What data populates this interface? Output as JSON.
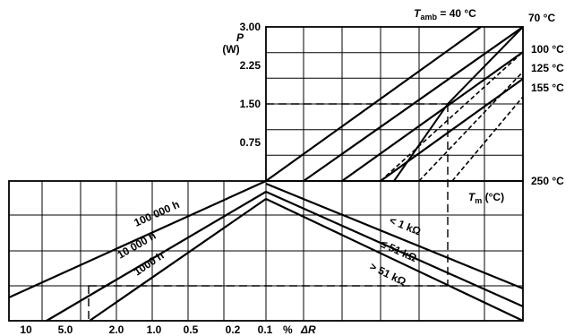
{
  "chart_data": {
    "type": "line",
    "title": "",
    "grid": true,
    "upper": {
      "ylabel": "P",
      "yunit": "(W)",
      "yticks": [
        "3.00",
        "2.25",
        "1.50",
        "0.75"
      ],
      "ytick_values": [
        3.0,
        2.25,
        1.5,
        0.75
      ],
      "ylim": [
        0,
        3.0
      ],
      "x_axis_label_prefix": "T",
      "x_axis_label_sub": "m",
      "x_axis_label_unit": " (°C)",
      "ambient_label_prefix": "T",
      "ambient_label_sub": "amb",
      "ambient_label_value": " = 40 °C",
      "ambient_temperatures": [
        {
          "label": "70 °C",
          "kind": "solid"
        },
        {
          "label": "100 °C",
          "kind": "dashed"
        },
        {
          "label": "125 °C",
          "kind": "dashed"
        },
        {
          "label": "155 °C",
          "kind": "dashed"
        }
      ],
      "max_temperature_label": "250 °C"
    },
    "lower": {
      "xticks": [
        "10",
        "5.0",
        "2.0",
        "1.0",
        "0.5",
        "0.2",
        "0.1"
      ],
      "x_unit": "%",
      "x_symbol": "ΔR",
      "time_series": [
        {
          "name": "100 000 h"
        },
        {
          "name": "10 000 h"
        },
        {
          "name": "1000 h"
        }
      ],
      "resistance_series": [
        {
          "name": "< 1 kΩ"
        },
        {
          "name": "≤ 51 kΩ"
        },
        {
          "name": "> 51 kΩ"
        }
      ]
    },
    "example_path": {
      "power_W": 1.5,
      "style": "dashed"
    }
  }
}
